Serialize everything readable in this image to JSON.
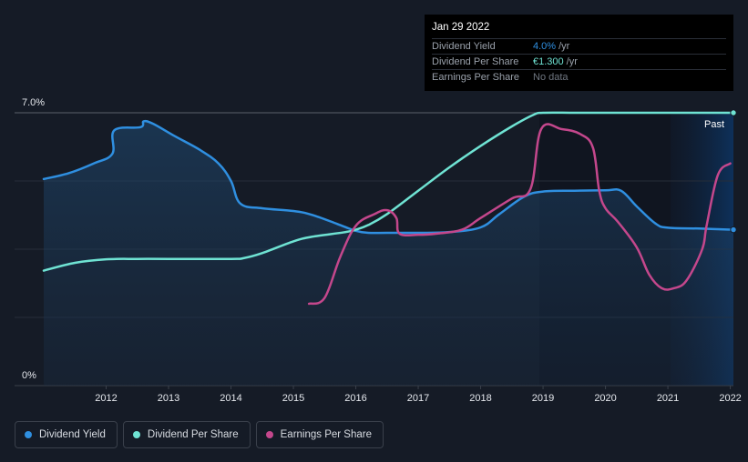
{
  "tooltip": {
    "date": "Jan 29 2022",
    "rows": [
      {
        "name": "Dividend Yield",
        "value": "4.0%",
        "unit": "/yr",
        "color": "#2f8fe0"
      },
      {
        "name": "Dividend Per Share",
        "value": "€1.300",
        "unit": "/yr",
        "color": "#6fe3d3"
      },
      {
        "name": "Earnings Per Share",
        "value": "No data",
        "unit": "",
        "color": "#6f7680"
      }
    ]
  },
  "past_label": "Past",
  "legend": [
    {
      "label": "Dividend Yield",
      "color": "#2f8fe0"
    },
    {
      "label": "Dividend Per Share",
      "color": "#6fe3d3"
    },
    {
      "label": "Earnings Per Share",
      "color": "#c4478c"
    }
  ],
  "chart_data": {
    "type": "line",
    "title": "",
    "xlabel": "",
    "ylabel": "",
    "x_ticks": [
      "2012",
      "2013",
      "2014",
      "2015",
      "2016",
      "2017",
      "2018",
      "2019",
      "2020",
      "2021",
      "2022"
    ],
    "y_ticks": [
      "0%",
      "7.0%"
    ],
    "ylim": [
      0,
      7.0
    ],
    "xlim": [
      2011.0,
      2022.05
    ],
    "grid": true,
    "legend_position": "bottom-left",
    "series": [
      {
        "name": "Dividend Yield",
        "color": "#2f8fe0",
        "filled": true,
        "points": [
          [
            2011.0,
            5.3
          ],
          [
            2011.4,
            5.45
          ],
          [
            2011.8,
            5.7
          ],
          [
            2012.1,
            5.95
          ],
          [
            2012.13,
            6.55
          ],
          [
            2012.55,
            6.63
          ],
          [
            2012.6,
            6.78
          ],
          [
            2012.75,
            6.72
          ],
          [
            2013.1,
            6.4
          ],
          [
            2013.5,
            6.05
          ],
          [
            2013.8,
            5.7
          ],
          [
            2014.0,
            5.25
          ],
          [
            2014.15,
            4.67
          ],
          [
            2014.5,
            4.55
          ],
          [
            2015.0,
            4.48
          ],
          [
            2015.3,
            4.38
          ],
          [
            2015.7,
            4.15
          ],
          [
            2016.0,
            3.97
          ],
          [
            2016.2,
            3.92
          ],
          [
            2016.5,
            3.92
          ],
          [
            2017.0,
            3.92
          ],
          [
            2017.5,
            3.94
          ],
          [
            2018.0,
            4.06
          ],
          [
            2018.3,
            4.4
          ],
          [
            2018.7,
            4.85
          ],
          [
            2019.0,
            4.98
          ],
          [
            2019.5,
            5.0
          ],
          [
            2020.0,
            5.01
          ],
          [
            2020.25,
            5.0
          ],
          [
            2020.5,
            4.6
          ],
          [
            2020.8,
            4.16
          ],
          [
            2021.0,
            4.05
          ],
          [
            2021.5,
            4.03
          ],
          [
            2022.05,
            4.0
          ]
        ]
      },
      {
        "name": "Dividend Per Share",
        "color": "#6fe3d3",
        "filled": false,
        "points": [
          [
            2011.0,
            2.95
          ],
          [
            2011.5,
            3.15
          ],
          [
            2012.0,
            3.24
          ],
          [
            2012.5,
            3.25
          ],
          [
            2013.0,
            3.25
          ],
          [
            2014.0,
            3.25
          ],
          [
            2014.2,
            3.27
          ],
          [
            2014.5,
            3.4
          ],
          [
            2015.0,
            3.7
          ],
          [
            2015.3,
            3.82
          ],
          [
            2015.8,
            3.93
          ],
          [
            2016.0,
            4.0
          ],
          [
            2016.2,
            4.12
          ],
          [
            2016.5,
            4.4
          ],
          [
            2017.0,
            5.0
          ],
          [
            2017.5,
            5.6
          ],
          [
            2018.0,
            6.15
          ],
          [
            2018.5,
            6.65
          ],
          [
            2018.85,
            6.95
          ],
          [
            2019.0,
            7.0
          ],
          [
            2019.5,
            7.0
          ],
          [
            2020.0,
            7.0
          ],
          [
            2021.0,
            7.0
          ],
          [
            2022.05,
            7.0
          ]
        ]
      },
      {
        "name": "Earnings Per Share",
        "color": "#c4478c",
        "filled": false,
        "points": [
          [
            2015.25,
            2.1
          ],
          [
            2015.5,
            2.25
          ],
          [
            2015.75,
            3.3
          ],
          [
            2016.0,
            4.1
          ],
          [
            2016.3,
            4.4
          ],
          [
            2016.5,
            4.5
          ],
          [
            2016.65,
            4.3
          ],
          [
            2016.7,
            3.9
          ],
          [
            2017.0,
            3.87
          ],
          [
            2017.3,
            3.9
          ],
          [
            2017.7,
            4.0
          ],
          [
            2018.0,
            4.3
          ],
          [
            2018.5,
            4.8
          ],
          [
            2018.8,
            5.05
          ],
          [
            2018.97,
            6.58
          ],
          [
            2019.3,
            6.58
          ],
          [
            2019.6,
            6.45
          ],
          [
            2019.8,
            6.1
          ],
          [
            2019.9,
            5.0
          ],
          [
            2020.0,
            4.55
          ],
          [
            2020.2,
            4.2
          ],
          [
            2020.5,
            3.55
          ],
          [
            2020.7,
            2.85
          ],
          [
            2020.9,
            2.5
          ],
          [
            2021.1,
            2.5
          ],
          [
            2021.3,
            2.7
          ],
          [
            2021.55,
            3.5
          ],
          [
            2021.62,
            4.1
          ],
          [
            2021.8,
            5.4
          ],
          [
            2022.0,
            5.7
          ]
        ]
      }
    ]
  }
}
